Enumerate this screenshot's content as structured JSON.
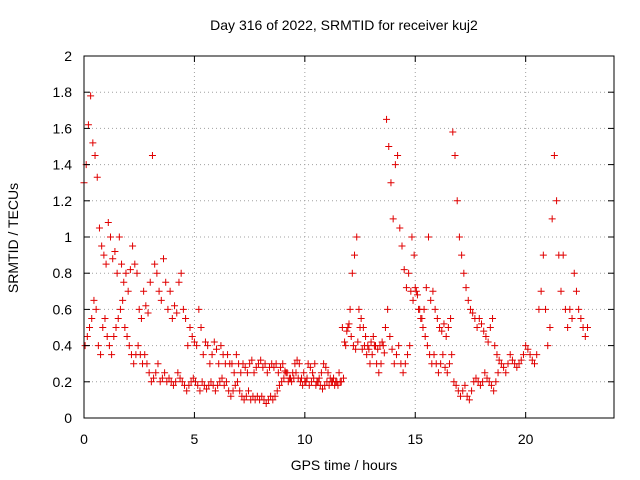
{
  "chart_data": {
    "type": "scatter",
    "title": "Day 316 of 2022, SRMTID for receiver kuj2",
    "xlabel": "GPS time / hours",
    "ylabel": "SRMTID / TECUs",
    "xlim": [
      0,
      24
    ],
    "ylim": [
      0,
      2
    ],
    "xticks": [
      0,
      5,
      10,
      15,
      20
    ],
    "xtick_labels": [
      "0",
      "5",
      "10",
      "15",
      "20"
    ],
    "yticks": [
      0,
      0.2,
      0.4,
      0.6,
      0.8,
      1,
      1.2,
      1.4,
      1.6,
      1.8,
      2
    ],
    "ytick_labels": [
      "0",
      "0.2",
      "0.4",
      "0.6",
      "0.8",
      "1",
      "1.2",
      "1.4",
      "1.6",
      "1.8",
      "2"
    ],
    "grid": true,
    "marker": "+",
    "color": "#e00000",
    "series": [
      {
        "name": "SRMTID",
        "x": [
          0.0,
          0.1,
          0.2,
          0.3,
          0.4,
          0.5,
          0.6,
          0.7,
          0.8,
          0.9,
          1.0,
          1.1,
          1.2,
          1.3,
          1.4,
          1.5,
          1.6,
          1.7,
          1.8,
          1.9,
          2.0,
          2.1,
          2.2,
          2.3,
          2.4,
          2.5,
          2.6,
          2.7,
          2.8,
          2.9,
          3.0,
          3.1,
          3.2,
          3.3,
          3.4,
          3.5,
          3.6,
          3.7,
          3.8,
          3.9,
          4.0,
          4.1,
          4.2,
          4.3,
          4.4,
          4.5,
          4.6,
          4.7,
          4.8,
          4.9,
          5.0,
          5.1,
          5.2,
          5.3,
          5.4,
          5.5,
          5.6,
          5.7,
          5.8,
          5.9,
          6.0,
          6.1,
          6.2,
          6.3,
          6.4,
          6.5,
          6.6,
          6.7,
          6.8,
          6.9,
          7.0,
          7.1,
          7.2,
          7.3,
          7.4,
          7.5,
          7.6,
          7.7,
          7.8,
          7.9,
          8.0,
          8.1,
          8.2,
          8.3,
          8.4,
          8.5,
          8.6,
          8.7,
          8.8,
          8.9,
          9.0,
          9.1,
          9.2,
          9.3,
          9.4,
          9.5,
          9.6,
          9.7,
          9.8,
          9.9,
          10.0,
          10.1,
          10.2,
          10.3,
          10.4,
          10.5,
          10.6,
          10.7,
          10.8,
          10.9,
          11.0,
          11.1,
          11.2,
          11.3,
          11.4,
          11.5,
          11.6,
          11.7,
          11.8,
          11.9,
          12.0,
          12.1,
          12.2,
          12.3,
          12.4,
          12.5,
          12.6,
          12.7,
          12.8,
          12.9,
          13.0,
          13.1,
          13.2,
          13.3,
          13.4,
          13.5,
          13.6,
          13.7,
          13.8,
          13.9,
          14.0,
          14.1,
          14.2,
          14.3,
          14.4,
          14.5,
          14.6,
          14.7,
          14.8,
          14.9,
          15.0,
          15.1,
          15.2,
          15.3,
          15.4,
          15.5,
          15.6,
          15.7,
          15.8,
          15.9,
          16.0,
          16.1,
          16.2,
          16.3,
          16.4,
          16.5,
          16.6,
          16.7,
          16.8,
          16.9,
          17.0,
          17.1,
          17.2,
          17.3,
          17.4,
          17.5,
          17.6,
          17.7,
          17.8,
          17.9,
          18.0,
          18.1,
          18.2,
          18.3,
          18.4,
          18.5,
          18.6,
          18.7,
          18.8,
          18.9,
          19.0,
          19.1,
          19.2,
          19.3,
          19.4,
          19.5,
          19.6,
          19.7,
          19.8,
          19.9,
          20.0,
          20.1,
          20.2,
          20.3,
          20.4,
          20.5,
          20.6,
          20.7,
          20.8,
          20.9,
          21.0,
          21.1,
          21.2,
          21.3,
          21.4,
          21.5,
          21.6,
          21.7,
          21.8,
          21.9,
          22.0,
          22.1,
          22.2,
          22.3,
          22.4,
          22.5,
          22.6,
          22.7,
          22.8,
          0.05,
          0.15,
          0.25,
          0.35,
          0.45,
          0.55,
          0.65,
          0.75,
          0.85,
          0.95,
          1.05,
          1.15,
          1.25,
          1.35,
          1.45,
          1.55,
          1.65,
          1.75,
          1.85,
          1.95,
          2.05,
          2.15,
          2.25,
          2.35,
          2.45,
          2.55,
          2.65,
          2.75,
          2.85,
          2.95,
          3.05,
          3.15,
          3.25,
          3.35,
          3.45,
          3.55,
          3.65,
          3.75,
          3.85,
          3.95,
          4.05,
          4.15,
          4.25,
          4.35,
          4.45,
          4.55,
          4.65,
          4.75,
          4.85,
          4.95,
          5.05,
          5.15,
          5.25,
          5.35,
          5.45,
          5.55,
          5.65,
          5.75,
          5.85,
          5.95,
          6.05,
          6.15,
          6.25,
          6.35,
          6.45,
          6.55,
          6.65,
          6.75,
          6.85,
          6.95,
          7.05,
          7.15,
          7.25,
          7.35,
          7.45,
          7.55,
          7.65,
          7.75,
          7.85,
          7.95,
          8.05,
          8.15,
          8.25,
          8.35,
          8.45,
          8.55,
          8.65,
          8.75,
          8.85,
          8.95,
          9.05,
          9.15,
          9.25,
          9.35,
          9.45,
          9.55,
          9.65,
          9.75,
          9.85,
          9.95,
          10.05,
          10.15,
          10.25,
          10.35,
          10.45,
          10.55,
          10.65,
          10.75,
          10.85,
          10.95,
          11.05,
          11.15,
          11.25,
          11.35,
          11.45,
          11.55,
          11.65,
          11.75,
          11.85,
          11.95,
          12.05,
          12.15,
          12.25,
          12.35,
          12.45,
          12.55,
          12.65,
          12.75,
          12.85,
          12.95,
          13.05,
          13.15,
          13.25,
          13.35,
          13.45,
          13.55,
          13.65,
          13.75,
          13.85,
          13.95,
          14.05,
          14.15,
          14.25,
          14.35,
          14.45,
          14.55,
          14.65,
          14.75,
          14.85,
          14.95,
          15.05,
          15.15,
          15.25,
          15.35,
          15.45,
          15.55,
          15.65,
          15.75,
          15.85,
          15.95,
          16.05,
          16.15,
          16.25,
          16.35,
          16.45,
          16.55,
          16.65,
          16.75,
          16.85,
          16.95,
          17.05,
          17.15,
          17.25,
          17.35,
          17.45,
          17.55,
          17.65,
          17.75,
          17.85,
          17.95,
          18.05,
          18.15,
          18.25,
          18.35,
          18.45,
          18.55,
          18.65,
          18.75,
          18.85,
          18.95,
          19.05,
          19.15,
          19.25,
          19.35,
          19.45,
          19.55,
          19.65,
          19.75,
          19.85,
          19.95,
          20.05,
          20.15,
          20.25,
          20.35,
          20.45,
          20.55,
          20.65,
          20.75,
          20.85,
          20.95,
          21.05,
          21.15,
          21.25,
          21.35,
          21.45,
          21.55,
          21.65,
          21.75,
          21.85,
          21.95,
          22.05,
          22.15,
          22.25,
          22.35,
          22.45,
          22.55,
          22.65,
          22.75,
          0.3,
          0.6,
          1.2,
          1.3,
          1.4,
          1.62,
          1.78,
          1.52,
          1.45,
          1.33,
          1.05,
          0.95,
          0.9,
          0.85,
          1.08,
          1.0,
          0.88,
          0.92,
          0.8,
          1.0,
          0.85,
          0.75,
          0.8,
          0.7,
          0.82,
          0.95,
          0.85,
          0.8,
          0.6,
          0.55,
          0.7,
          0.62,
          0.58,
          0.75,
          1.45,
          0.85,
          0.8,
          0.7,
          0.65,
          0.88,
          0.75,
          0.6,
          0.7,
          0.55,
          0.62,
          0.58,
          0.75,
          0.8,
          0.6,
          0.55,
          0.4,
          0.5,
          0.45,
          0.42,
          0.4,
          0.6,
          0.5,
          0.35,
          0.42,
          0.4,
          0.3,
          0.35,
          0.42,
          0.38,
          0.3,
          0.4,
          0.35,
          0.3,
          0.35,
          0.3,
          0.3,
          0.25,
          0.35,
          0.3,
          0.25,
          0.3,
          0.28,
          0.25,
          0.3,
          0.32,
          0.25,
          0.28,
          0.3,
          0.32,
          0.28,
          0.3,
          0.25,
          0.28,
          0.3,
          0.28,
          0.3,
          0.25,
          0.28,
          0.3,
          0.26,
          0.25,
          0.22,
          0.2,
          0.22,
          0.25,
          0.22,
          0.2,
          0.18,
          0.2,
          0.22,
          0.18,
          0.2,
          0.22,
          0.18,
          0.2,
          0.18,
          0.16,
          0.18,
          0.2,
          0.18,
          0.2,
          0.22,
          0.2,
          0.18,
          0.2,
          0.5,
          0.42,
          0.48,
          0.52,
          0.45,
          0.4,
          0.38,
          0.42,
          0.5,
          0.38,
          0.4,
          0.35,
          0.38,
          0.42,
          0.45,
          0.4,
          0.38,
          0.4,
          0.42,
          0.36,
          1.65,
          1.5,
          1.3,
          1.1,
          1.4,
          1.45,
          1.05,
          0.95,
          0.82,
          0.72,
          0.8,
          0.7,
          0.65,
          0.72,
          0.68,
          0.6,
          0.55,
          0.6,
          0.72,
          1.0,
          0.65,
          0.7,
          0.6,
          0.55,
          0.5,
          0.48,
          0.52,
          0.45,
          0.5,
          0.55,
          1.58,
          1.45,
          1.2,
          1.0,
          0.9,
          0.8,
          0.72,
          0.65,
          0.6,
          0.58,
          0.55,
          0.5,
          0.55,
          0.52,
          0.48,
          0.45,
          0.42,
          0.5,
          0.55,
          0.4,
          0.35,
          0.32,
          0.3,
          0.28,
          0.25,
          0.3,
          0.35,
          0.32,
          0.3,
          0.28,
          0.3,
          0.32,
          0.35,
          0.4,
          0.38,
          0.35,
          0.32,
          0.3,
          0.35,
          0.6,
          0.7,
          0.9,
          0.6,
          0.4,
          0.5,
          1.1,
          1.45,
          1.2,
          0.9,
          0.7,
          0.9,
          0.6,
          0.5,
          0.6,
          0.55,
          0.8,
          0.7,
          0.6,
          0.55,
          0.5,
          0.45,
          0.5,
          0.4,
          0.45,
          0.5,
          0.55,
          0.65,
          0.6,
          0.4,
          0.35,
          0.5,
          0.55,
          0.45,
          0.4,
          0.35,
          0.45,
          0.5,
          0.55,
          0.6,
          0.65,
          0.5,
          0.45,
          0.4,
          0.35,
          0.3,
          0.35,
          0.4,
          0.35,
          0.3,
          0.35,
          0.3,
          0.25,
          0.2,
          0.22,
          0.25,
          0.3,
          0.2,
          0.22,
          0.25,
          0.2,
          0.22,
          0.2,
          0.18,
          0.2,
          0.25,
          0.22,
          0.2,
          0.18,
          0.15,
          0.18,
          0.2,
          0.22,
          0.2,
          0.18,
          0.15,
          0.2,
          0.18,
          0.16,
          0.18,
          0.2,
          0.18,
          0.15,
          0.18,
          0.2,
          0.22,
          0.18,
          0.2,
          0.15,
          0.12,
          0.15,
          0.18,
          0.2,
          0.15,
          0.12,
          0.1,
          0.12,
          0.15,
          0.1,
          0.12,
          0.1,
          0.12,
          0.1,
          0.12,
          0.1,
          0.08,
          0.1,
          0.12,
          0.1,
          0.12,
          0.15,
          0.18,
          0.2,
          0.22,
          0.25,
          0.2,
          0.22,
          0.25,
          0.3,
          0.32,
          0.3,
          0.22,
          0.25,
          0.2,
          0.3,
          0.28,
          0.25,
          0.3,
          0.2,
          0.22,
          0.25,
          0.3,
          0.28,
          0.25,
          0.22,
          0.2,
          0.18,
          0.2,
          0.25,
          0.2,
          0.22,
          0.4,
          0.5,
          0.6,
          0.8,
          0.9,
          1.0,
          0.6,
          0.55,
          0.5,
          0.45,
          0.4,
          0.3,
          0.35,
          0.4,
          0.3,
          0.25,
          0.3,
          0.4,
          0.5,
          0.6,
          0.45,
          0.38,
          0.3,
          0.35,
          0.4,
          0.3,
          0.25,
          0.3,
          0.35,
          0.4,
          1.0,
          0.9,
          0.7,
          0.6,
          0.55,
          0.5,
          0.45,
          0.4,
          0.35,
          0.3,
          0.35,
          0.3,
          0.25,
          0.3,
          0.35,
          0.28,
          0.25,
          0.3,
          0.35,
          0.2,
          0.18,
          0.15,
          0.12,
          0.15,
          0.18,
          0.12,
          0.1,
          0.15,
          0.2,
          0.22,
          0.2,
          0.18,
          0.2,
          0.25,
          0.22,
          0.2,
          0.18,
          0.15,
          0.2,
          0.25
        ]
      }
    ]
  }
}
